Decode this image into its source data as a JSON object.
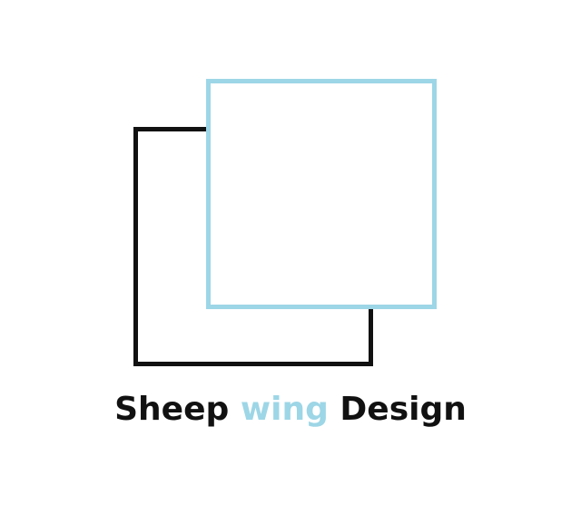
{
  "logo": {
    "brand_name_part1": "Sheep",
    "brand_name_part2": "wing",
    "brand_name_part3": "Design",
    "colors": {
      "dark": "#111111",
      "accent": "#9dd6e6",
      "background": "#ffffff"
    }
  }
}
